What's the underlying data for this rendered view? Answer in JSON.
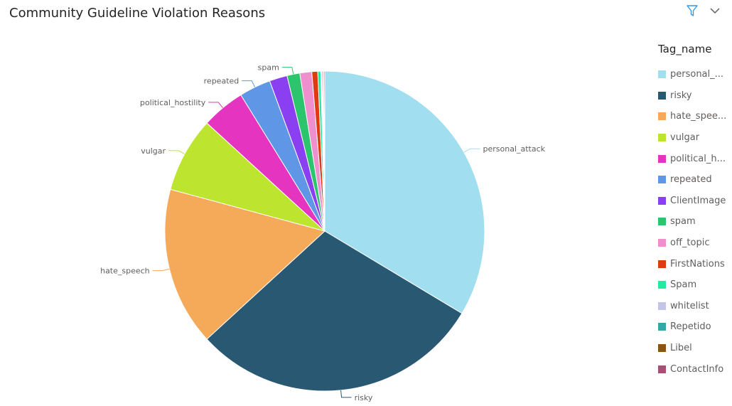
{
  "header": {
    "title": "Community Guideline Violation Reasons",
    "filter_icon": "filter-icon",
    "more_icon": "chevron-down-icon"
  },
  "legend": {
    "title": "Tag_name",
    "items": [
      {
        "label": "personal_...",
        "color": "#a0def0"
      },
      {
        "label": "risky",
        "color": "#295873"
      },
      {
        "label": "hate_spee...",
        "color": "#f5aa59"
      },
      {
        "label": "vulgar",
        "color": "#bde52f"
      },
      {
        "label": "political_h...",
        "color": "#e535c0"
      },
      {
        "label": "repeated",
        "color": "#5f96e6"
      },
      {
        "label": "ClientImage",
        "color": "#8a3ff0"
      },
      {
        "label": "spam",
        "color": "#2dc46e"
      },
      {
        "label": "off_topic",
        "color": "#f08fcd"
      },
      {
        "label": "FirstNations",
        "color": "#df3a12"
      },
      {
        "label": "Spam",
        "color": "#27e8a1"
      },
      {
        "label": "whitelist",
        "color": "#c2c5e8"
      },
      {
        "label": "Repetido",
        "color": "#32a8ab"
      },
      {
        "label": "Libel",
        "color": "#8a5413"
      },
      {
        "label": "ContactInfo",
        "color": "#a65073"
      }
    ]
  },
  "chart_data": {
    "type": "pie",
    "title": "Community Guideline Violation Reasons",
    "legend_title": "Tag_name",
    "legend_position": "right",
    "slices": [
      {
        "name": "personal_attack",
        "value": 33.6,
        "color": "#a0def0",
        "label": "personal_attack"
      },
      {
        "name": "risky",
        "value": 29.6,
        "color": "#295873",
        "label": "risky"
      },
      {
        "name": "hate_speech",
        "value": 16.0,
        "color": "#f5aa59",
        "label": "hate_speech"
      },
      {
        "name": "vulgar",
        "value": 7.6,
        "color": "#bde52f",
        "label": "vulgar"
      },
      {
        "name": "political_hostility",
        "value": 4.4,
        "color": "#e535c0",
        "label": "political_hostility"
      },
      {
        "name": "repeated",
        "value": 3.2,
        "color": "#5f96e6",
        "label": "repeated"
      },
      {
        "name": "ClientImage",
        "value": 1.8,
        "color": "#8a3ff0",
        "label": ""
      },
      {
        "name": "spam",
        "value": 1.3,
        "color": "#2dc46e",
        "label": "spam"
      },
      {
        "name": "off_topic",
        "value": 1.2,
        "color": "#f08fcd",
        "label": ""
      },
      {
        "name": "FirstNations",
        "value": 0.6,
        "color": "#df3a12",
        "label": ""
      },
      {
        "name": "Spam",
        "value": 0.3,
        "color": "#27e8a1",
        "label": ""
      },
      {
        "name": "whitelist",
        "value": 0.1,
        "color": "#c2c5e8",
        "label": ""
      },
      {
        "name": "Repetido",
        "value": 0.1,
        "color": "#32a8ab",
        "label": ""
      },
      {
        "name": "Libel",
        "value": 0.1,
        "color": "#8a5413",
        "label": ""
      },
      {
        "name": "ContactInfo",
        "value": 0.1,
        "color": "#a65073",
        "label": ""
      }
    ]
  }
}
